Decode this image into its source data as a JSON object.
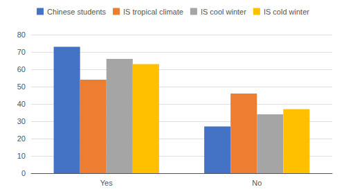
{
  "chart_data": {
    "type": "bar",
    "categories": [
      "Yes",
      "No"
    ],
    "series": [
      {
        "name": "Chinese students",
        "color": "#4472C4",
        "values": [
          73,
          27
        ]
      },
      {
        "name": "IS tropical climate",
        "color": "#ED7D31",
        "values": [
          54,
          46
        ]
      },
      {
        "name": "IS cool winter",
        "color": "#A5A5A5",
        "values": [
          66,
          34
        ]
      },
      {
        "name": "IS cold winter",
        "color": "#FFC000",
        "values": [
          63,
          37
        ]
      }
    ],
    "ylim": [
      0,
      80
    ],
    "yticks": [
      0,
      10,
      20,
      30,
      40,
      50,
      60,
      70,
      80
    ],
    "grid": true,
    "legend": "top"
  }
}
